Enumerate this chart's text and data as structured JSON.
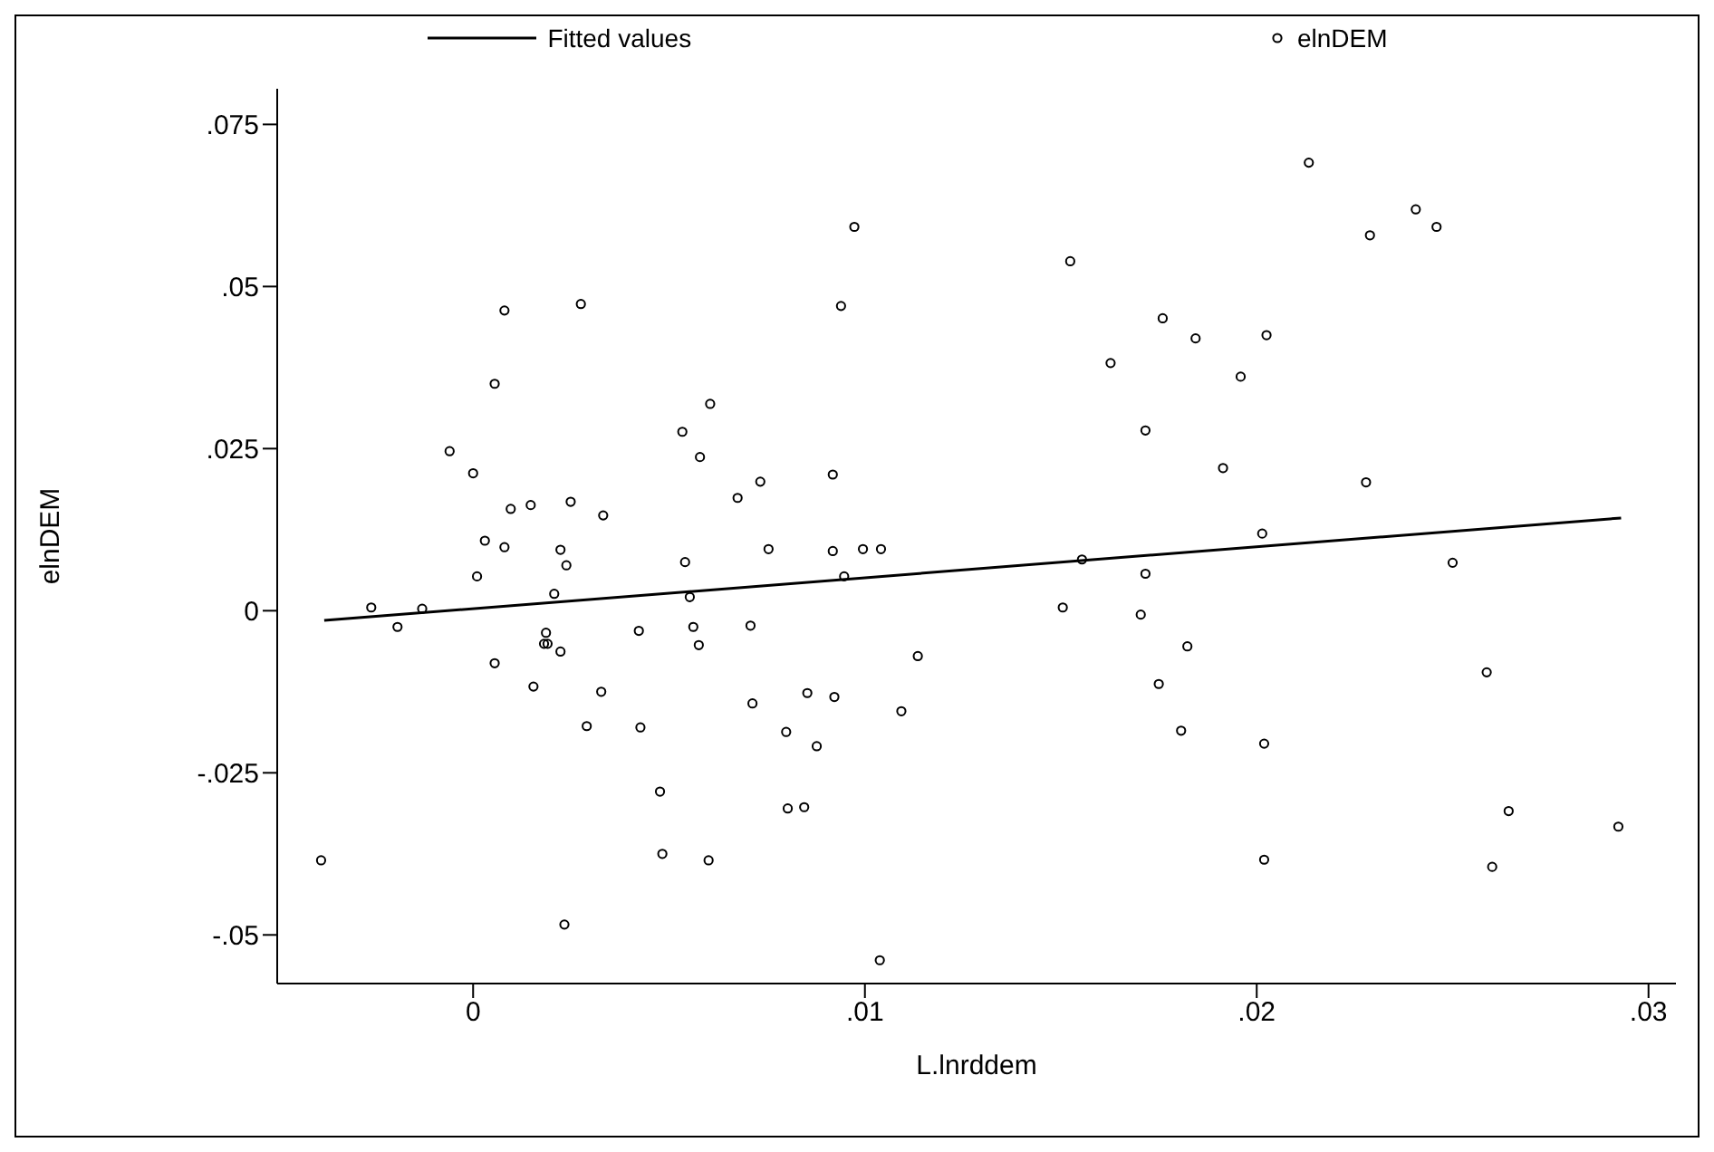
{
  "chart_data": {
    "type": "scatter",
    "xlabel": "L.lnrddem",
    "ylabel": "elnDEM",
    "xlim": [
      -0.005,
      0.0307
    ],
    "ylim": [
      -0.0575,
      0.0805
    ],
    "xticks": [
      {
        "value": 0,
        "label": "0"
      },
      {
        "value": 0.01,
        "label": ".01"
      },
      {
        "value": 0.02,
        "label": ".02"
      },
      {
        "value": 0.03,
        "label": ".03"
      }
    ],
    "yticks": [
      {
        "value": -0.05,
        "label": "-.05"
      },
      {
        "value": -0.025,
        "label": "-.025"
      },
      {
        "value": 0,
        "label": "0"
      },
      {
        "value": 0.025,
        "label": ".025"
      },
      {
        "value": 0.05,
        "label": ".05"
      },
      {
        "value": 0.075,
        "label": ".075"
      }
    ],
    "grid": false,
    "legend": "top",
    "series": [
      {
        "name": "Fitted values",
        "type": "line",
        "color": "#000000",
        "marker": "none",
        "x": [
          -0.0038,
          0.0293
        ],
        "values": [
          -0.0015,
          0.0143
        ]
      },
      {
        "name": "elnDEM",
        "color": "#000000",
        "marker": "circle",
        "x": [
          -0.0026,
          -0.0013,
          -0.0006,
          0.0,
          0.0001,
          0.0003,
          0.00055,
          0.0008,
          0.0008,
          0.00096,
          0.00147,
          0.00207,
          0.00223,
          0.00238,
          0.00249,
          0.00275,
          0.00332,
          0.00534,
          0.00541,
          0.00553,
          0.00579,
          0.00605,
          0.00675,
          0.00733,
          0.00754,
          0.00918,
          0.00918,
          0.00939,
          0.00947,
          0.00973,
          0.00995,
          0.01041,
          0.02133,
          0.02406,
          0.02459,
          0.02289,
          0.01524,
          0.0176,
          0.01844,
          0.02025,
          0.01627,
          0.01959,
          0.01716,
          0.01914,
          0.02279,
          0.02014,
          0.01554,
          0.01716,
          0.025,
          0.01505,
          0.01704,
          -0.00388,
          -0.00193,
          0.00055,
          0.00154,
          0.00186,
          0.00181,
          0.0019,
          0.00223,
          0.00233,
          0.0029,
          0.00327,
          0.00423,
          0.00427,
          0.00477,
          0.00483,
          0.00562,
          0.00576,
          0.00601,
          0.00708,
          0.00713,
          0.00799,
          0.00803,
          0.00845,
          0.00853,
          0.00877,
          0.00922,
          0.01038,
          0.01093,
          0.01135,
          0.01823,
          0.0175,
          0.01807,
          0.02019,
          0.02019,
          0.02587,
          0.02643,
          0.02601,
          0.02923
        ],
        "values": [
          0.0005,
          0.0003,
          0.0246,
          0.0212,
          0.0053,
          0.0108,
          0.035,
          0.0463,
          0.0098,
          0.0157,
          0.0163,
          0.0026,
          0.0094,
          0.007,
          0.0168,
          0.0473,
          0.0147,
          0.0276,
          0.0075,
          0.0021,
          0.0237,
          0.0319,
          0.0174,
          0.0199,
          0.0095,
          0.021,
          0.0092,
          0.047,
          0.0053,
          0.0592,
          0.0095,
          0.0095,
          0.0691,
          0.0619,
          0.0592,
          0.0579,
          0.0539,
          0.0451,
          0.042,
          0.0425,
          0.0382,
          0.0361,
          0.0278,
          0.022,
          0.0198,
          0.0119,
          0.0079,
          0.0057,
          0.0074,
          0.0005,
          -0.0006,
          -0.0385,
          -0.0025,
          -0.0081,
          -0.0117,
          -0.0034,
          -0.0051,
          -0.0051,
          -0.0063,
          -0.0484,
          -0.0178,
          -0.0125,
          -0.0031,
          -0.018,
          -0.0279,
          -0.0375,
          -0.0025,
          -0.0053,
          -0.0385,
          -0.0023,
          -0.0143,
          -0.0187,
          -0.0305,
          -0.0303,
          -0.0127,
          -0.0209,
          -0.0133,
          -0.0539,
          -0.0155,
          -0.007,
          -0.0055,
          -0.0113,
          -0.0185,
          -0.0205,
          -0.0384,
          -0.0095,
          -0.0309,
          -0.0395,
          -0.0333
        ]
      }
    ]
  }
}
